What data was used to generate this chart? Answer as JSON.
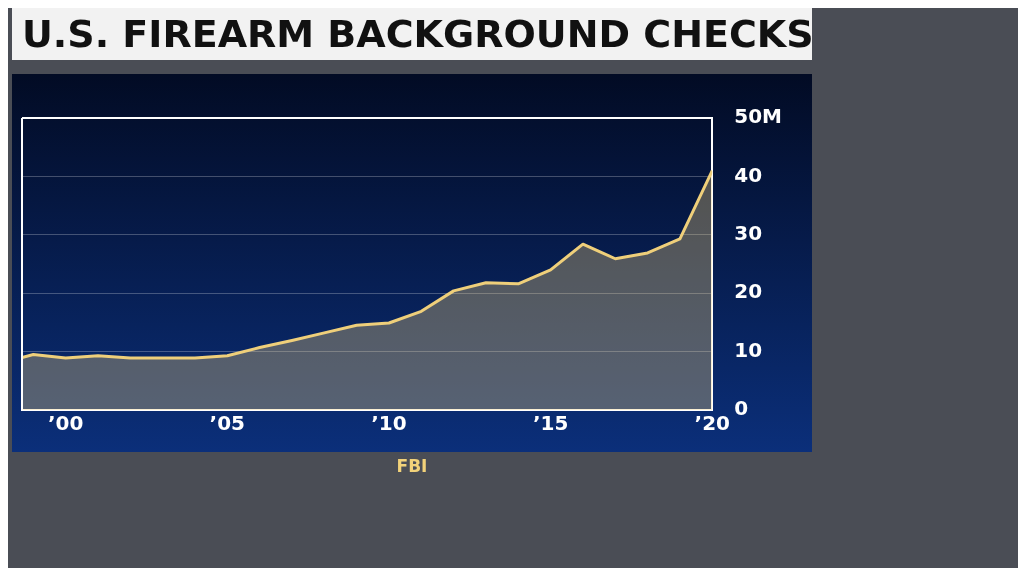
{
  "chart_data": {
    "type": "area",
    "title": "U.S. FIREARM BACKGROUND CHECKS",
    "annotations": [
      "FBI"
    ],
    "x": [
      1998.65,
      1999,
      2000,
      2001,
      2002,
      2003,
      2004,
      2005,
      2006,
      2007,
      2008,
      2009,
      2010,
      2011,
      2012,
      2013,
      2014,
      2015,
      2016,
      2017,
      2018,
      2019,
      2020
    ],
    "series": [
      {
        "color": "#efcf7a",
        "values": [
          9.0,
          9.5,
          8.9,
          9.3,
          8.9,
          8.9,
          8.9,
          9.3,
          10.7,
          11.9,
          13.2,
          14.5,
          14.9,
          16.9,
          20.4,
          21.8,
          21.6,
          24.0,
          28.4,
          25.9,
          26.9,
          29.3,
          41.0
        ]
      }
    ],
    "xlim": [
      1998.65,
      2020
    ],
    "xticks": [
      {
        "value": 2000,
        "label": "’00"
      },
      {
        "value": 2005,
        "label": "’05"
      },
      {
        "value": 2010,
        "label": "’10"
      },
      {
        "value": 2015,
        "label": "’15"
      },
      {
        "value": 2020,
        "label": "’20"
      }
    ],
    "ylim": [
      0,
      50
    ],
    "yticks": [
      0,
      10,
      20,
      30,
      40,
      {
        "value": 50,
        "label": "50M"
      }
    ],
    "grid": "y",
    "legend": false,
    "marker": "none",
    "line_style": "solid"
  }
}
